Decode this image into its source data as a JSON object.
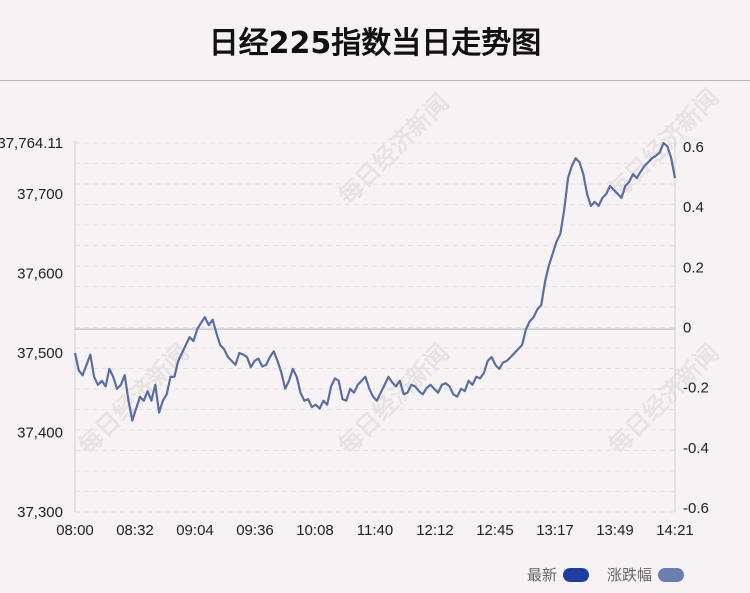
{
  "title": "日经225指数当日走势图",
  "legend": {
    "items": [
      {
        "label": "最新",
        "color": "#1f3fa0"
      },
      {
        "label": "涨跌幅",
        "color": "#6b7fb0"
      }
    ]
  },
  "watermark": "每日经济新闻",
  "chart_data": {
    "type": "line",
    "title": "日经225指数当日走势图",
    "x_ticks": [
      "08:00",
      "08:32",
      "09:04",
      "09:36",
      "10:08",
      "11:40",
      "12:12",
      "12:45",
      "13:17",
      "13:49",
      "14:21"
    ],
    "y_left_ticks": [
      "37,300",
      "37,400",
      "37,500",
      "37,600",
      "37,700",
      "37,764.11"
    ],
    "y_left_range": [
      37300,
      37764.11
    ],
    "y_right_ticks": [
      "-0.6",
      "-0.4",
      "-0.2",
      "0",
      "0.2",
      "0.4",
      "0.6"
    ],
    "y_right_range": [
      -0.6,
      0.6
    ],
    "reference_value": 37530,
    "line_color": "#5a6f9f",
    "series": [
      {
        "values": [
          37500,
          37478,
          37472,
          37485,
          37498,
          37470,
          37460,
          37465,
          37458,
          37480,
          37470,
          37455,
          37460,
          37472,
          37440,
          37415,
          37430,
          37445,
          37440,
          37452,
          37440,
          37460,
          37425,
          37440,
          37448,
          37470,
          37470,
          37490,
          37500,
          37510,
          37520,
          37515,
          37530,
          37538,
          37545,
          37535,
          37542,
          37525,
          37510,
          37505,
          37495,
          37490,
          37485,
          37500,
          37498,
          37495,
          37482,
          37490,
          37493,
          37483,
          37485,
          37495,
          37502,
          37490,
          37475,
          37455,
          37465,
          37480,
          37470,
          37450,
          37440,
          37442,
          37432,
          37435,
          37430,
          37440,
          37435,
          37458,
          37468,
          37465,
          37442,
          37440,
          37455,
          37450,
          37460,
          37465,
          37470,
          37455,
          37445,
          37440,
          37450,
          37460,
          37470,
          37463,
          37458,
          37465,
          37448,
          37450,
          37460,
          37458,
          37452,
          37448,
          37456,
          37460,
          37455,
          37450,
          37460,
          37462,
          37458,
          37448,
          37445,
          37455,
          37452,
          37465,
          37460,
          37470,
          37468,
          37475,
          37490,
          37495,
          37485,
          37480,
          37488,
          37490,
          37495,
          37500,
          37505,
          37510,
          37530,
          37540,
          37545,
          37555,
          37560,
          37590,
          37610,
          37625,
          37640,
          37650,
          37680,
          37720,
          37735,
          37745,
          37740,
          37725,
          37700,
          37685,
          37690,
          37685,
          37695,
          37700,
          37710,
          37705,
          37700,
          37695,
          37710,
          37715,
          37725,
          37720,
          37728,
          37735,
          37740,
          37745,
          37748,
          37752,
          37764.11,
          37760,
          37745,
          37720
        ]
      }
    ]
  }
}
